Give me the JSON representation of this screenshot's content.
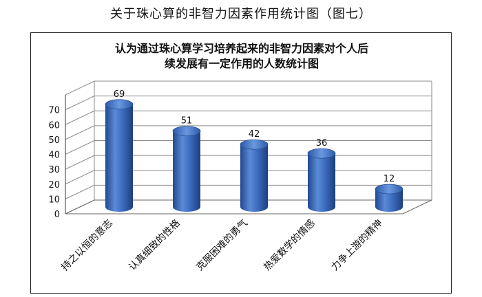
{
  "page_title": "关于珠心算的非智力因素作用统计图（图七）",
  "chart_data": {
    "type": "bar",
    "title_lines": [
      "认为通过珠心算学习培养起来的非智力因素对个人后",
      "续发展有一定作用的人数统计图"
    ],
    "categories": [
      "持之以恒的意志",
      "认真细致的性格",
      "克服困难的勇气",
      "热爱数学的情感",
      "力争上游的精神"
    ],
    "values": [
      69,
      51,
      42,
      36,
      12
    ],
    "yticks": [
      "0",
      "10",
      "20",
      "30",
      "40",
      "50",
      "60",
      "70"
    ],
    "ylim": [
      0,
      80
    ],
    "grid": true,
    "bar_color": "#3c6cc0",
    "xlabel": "",
    "ylabel": ""
  }
}
